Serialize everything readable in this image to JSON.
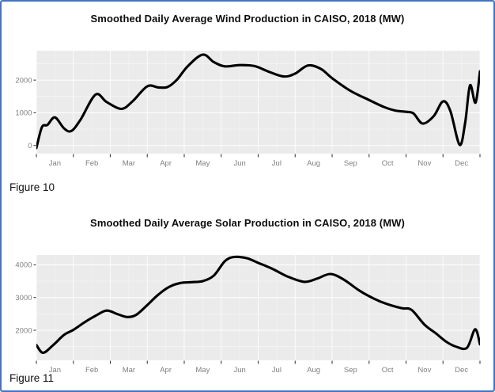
{
  "page": {
    "border_color": "#4472C4",
    "background": "#ffffff",
    "panel_background": "#EBEBEB",
    "gridline_color": "#FFFFFF",
    "axis_text_color": "#7F7F7F",
    "tick_mark_color": "#3c3c3c",
    "line_color": "#000000"
  },
  "figures": [
    {
      "caption": "Figure 10"
    },
    {
      "caption": "Figure 11"
    }
  ],
  "chart_data": [
    {
      "type": "line",
      "title": "Smoothed Daily Average Wind Production in CAISO, 2018 (MW)",
      "xlabel": "",
      "ylabel": "",
      "x_unit": "month of 2018 (0 = Jan 1, 12 = Dec 31)",
      "x_tick_labels": [
        "Jan",
        "Feb",
        "Mar",
        "Apr",
        "May",
        "Jun",
        "Jul",
        "Aug",
        "Sep",
        "Oct",
        "Nov",
        "Dec"
      ],
      "y_ticks": [
        0,
        1000,
        2000
      ],
      "y_minor_ticks": [
        500,
        1500,
        2500
      ],
      "ylim": [
        -250,
        2900
      ],
      "xlim": [
        0,
        12
      ],
      "grid": true,
      "legend": false,
      "series": [
        {
          "name": "Smoothed wind production (MW)",
          "color": "#000000",
          "points": [
            [
              0.0,
              -80
            ],
            [
              0.15,
              560
            ],
            [
              0.3,
              630
            ],
            [
              0.5,
              860
            ],
            [
              0.75,
              520
            ],
            [
              0.95,
              445
            ],
            [
              1.2,
              800
            ],
            [
              1.6,
              1555
            ],
            [
              1.9,
              1330
            ],
            [
              2.3,
              1120
            ],
            [
              2.6,
              1350
            ],
            [
              3.0,
              1810
            ],
            [
              3.3,
              1775
            ],
            [
              3.55,
              1790
            ],
            [
              3.8,
              2010
            ],
            [
              4.1,
              2430
            ],
            [
              4.5,
              2780
            ],
            [
              4.8,
              2550
            ],
            [
              5.1,
              2420
            ],
            [
              5.5,
              2460
            ],
            [
              5.9,
              2430
            ],
            [
              6.3,
              2250
            ],
            [
              6.7,
              2110
            ],
            [
              7.0,
              2200
            ],
            [
              7.35,
              2450
            ],
            [
              7.7,
              2340
            ],
            [
              8.0,
              2060
            ],
            [
              8.5,
              1670
            ],
            [
              9.0,
              1390
            ],
            [
              9.4,
              1180
            ],
            [
              9.7,
              1070
            ],
            [
              10.0,
              1030
            ],
            [
              10.2,
              980
            ],
            [
              10.45,
              670
            ],
            [
              10.75,
              900
            ],
            [
              11.0,
              1350
            ],
            [
              11.2,
              1050
            ],
            [
              11.45,
              20
            ],
            [
              11.6,
              700
            ],
            [
              11.73,
              1840
            ],
            [
              11.88,
              1310
            ],
            [
              12.0,
              2270
            ]
          ]
        }
      ]
    },
    {
      "type": "line",
      "title": "Smoothed Daily Average Solar Production in CAISO, 2018 (MW)",
      "xlabel": "",
      "ylabel": "",
      "x_unit": "month of 2018 (0 = Jan 1, 12 = Dec 31)",
      "x_tick_labels": [
        "Jan",
        "Feb",
        "Mar",
        "Apr",
        "May",
        "Jun",
        "Jul",
        "Aug",
        "Sep",
        "Oct",
        "Nov",
        "Dec"
      ],
      "y_ticks": [
        2000,
        3000,
        4000
      ],
      "y_minor_ticks": [
        1500,
        2500,
        3500
      ],
      "ylim": [
        1080,
        4300
      ],
      "xlim": [
        0,
        12
      ],
      "grid": true,
      "legend": false,
      "series": [
        {
          "name": "Smoothed solar production (MW)",
          "color": "#000000",
          "points": [
            [
              0.0,
              1550
            ],
            [
              0.18,
              1310
            ],
            [
              0.45,
              1540
            ],
            [
              0.75,
              1860
            ],
            [
              1.0,
              2010
            ],
            [
              1.3,
              2240
            ],
            [
              1.6,
              2440
            ],
            [
              1.9,
              2600
            ],
            [
              2.2,
              2490
            ],
            [
              2.45,
              2405
            ],
            [
              2.7,
              2470
            ],
            [
              3.0,
              2770
            ],
            [
              3.3,
              3090
            ],
            [
              3.6,
              3330
            ],
            [
              3.9,
              3445
            ],
            [
              4.2,
              3470
            ],
            [
              4.5,
              3500
            ],
            [
              4.8,
              3670
            ],
            [
              5.1,
              4110
            ],
            [
              5.35,
              4240
            ],
            [
              5.7,
              4200
            ],
            [
              6.0,
              4060
            ],
            [
              6.4,
              3870
            ],
            [
              6.8,
              3640
            ],
            [
              7.25,
              3480
            ],
            [
              7.6,
              3580
            ],
            [
              7.95,
              3720
            ],
            [
              8.3,
              3560
            ],
            [
              8.7,
              3240
            ],
            [
              9.0,
              3040
            ],
            [
              9.3,
              2880
            ],
            [
              9.6,
              2760
            ],
            [
              9.9,
              2670
            ],
            [
              10.15,
              2620
            ],
            [
              10.5,
              2170
            ],
            [
              10.8,
              1910
            ],
            [
              11.1,
              1640
            ],
            [
              11.35,
              1500
            ],
            [
              11.65,
              1465
            ],
            [
              11.87,
              2030
            ],
            [
              12.0,
              1570
            ]
          ]
        }
      ]
    }
  ]
}
